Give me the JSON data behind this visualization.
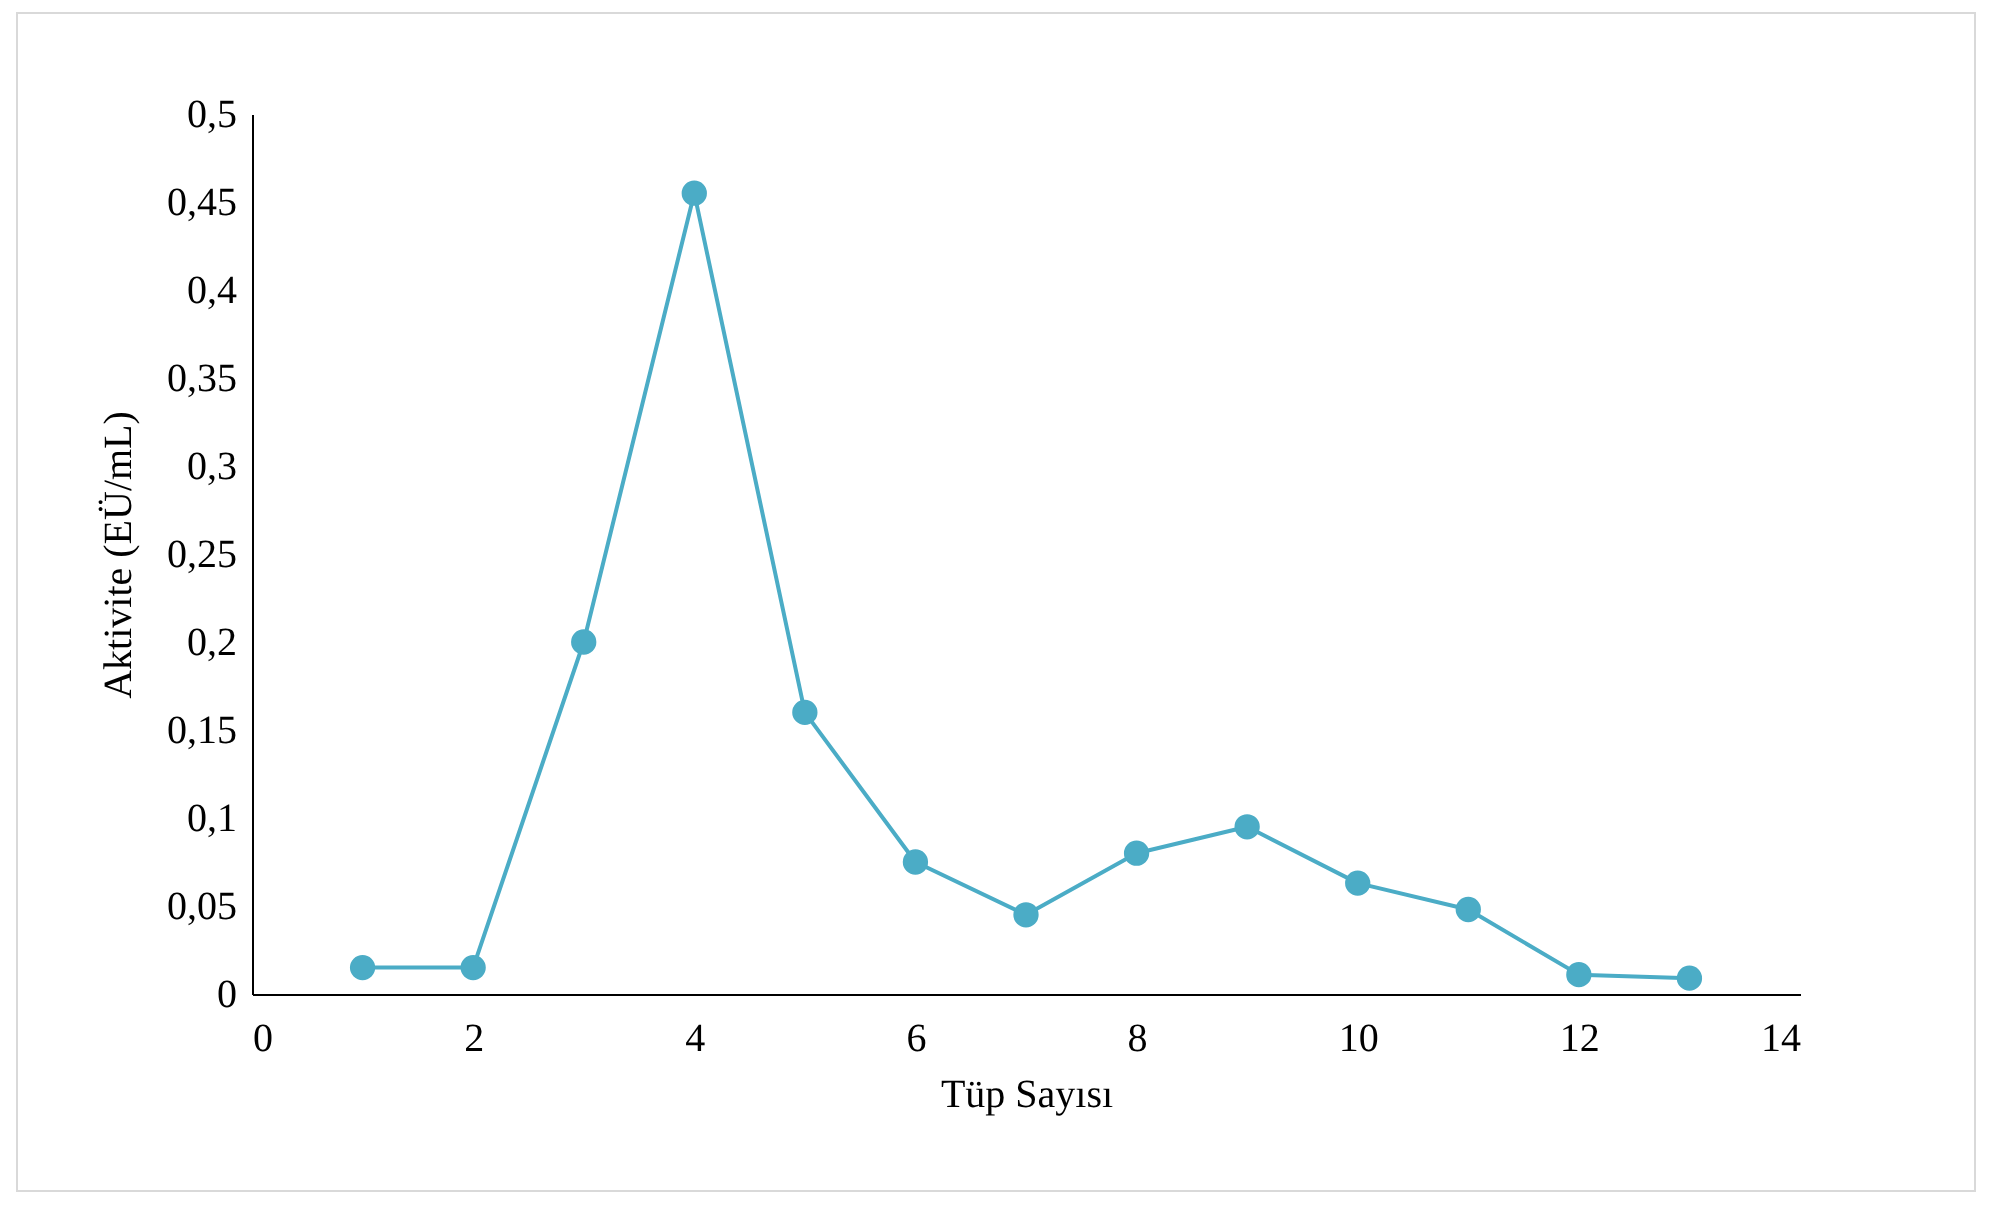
{
  "chart_data": {
    "type": "line",
    "xlabel": "Tüp Sayısı",
    "ylabel": "Aktivite (EÜ/mL)",
    "x": [
      1,
      2,
      3,
      4,
      5,
      6,
      7,
      8,
      9,
      10,
      11,
      12,
      13
    ],
    "series": [
      {
        "color": "#4bacc6",
        "values": [
          0.015,
          0.015,
          0.2,
          0.455,
          0.16,
          0.075,
          0.045,
          0.08,
          0.095,
          0.063,
          0.048,
          0.011,
          0.009
        ]
      }
    ],
    "xlim": [
      0,
      14
    ],
    "xticks": [
      0,
      2,
      4,
      6,
      8,
      10,
      12,
      14
    ],
    "ylim": [
      0,
      0.5
    ],
    "yticks": [
      0,
      {
        "value": 0.05,
        "label": "0,05"
      },
      {
        "value": 0.1,
        "label": "0,1"
      },
      {
        "value": 0.15,
        "label": "0,15"
      },
      {
        "value": 0.2,
        "label": "0,2"
      },
      {
        "value": 0.25,
        "label": "0,25"
      },
      {
        "value": 0.3,
        "label": "0,3"
      },
      {
        "value": 0.35,
        "label": "0,35"
      },
      {
        "value": 0.4,
        "label": "0,4"
      },
      {
        "value": 0.45,
        "label": "0,45"
      },
      {
        "value": 0.5,
        "label": "0,5"
      }
    ],
    "grid": false,
    "marker": "circle",
    "line_style": "solid"
  }
}
